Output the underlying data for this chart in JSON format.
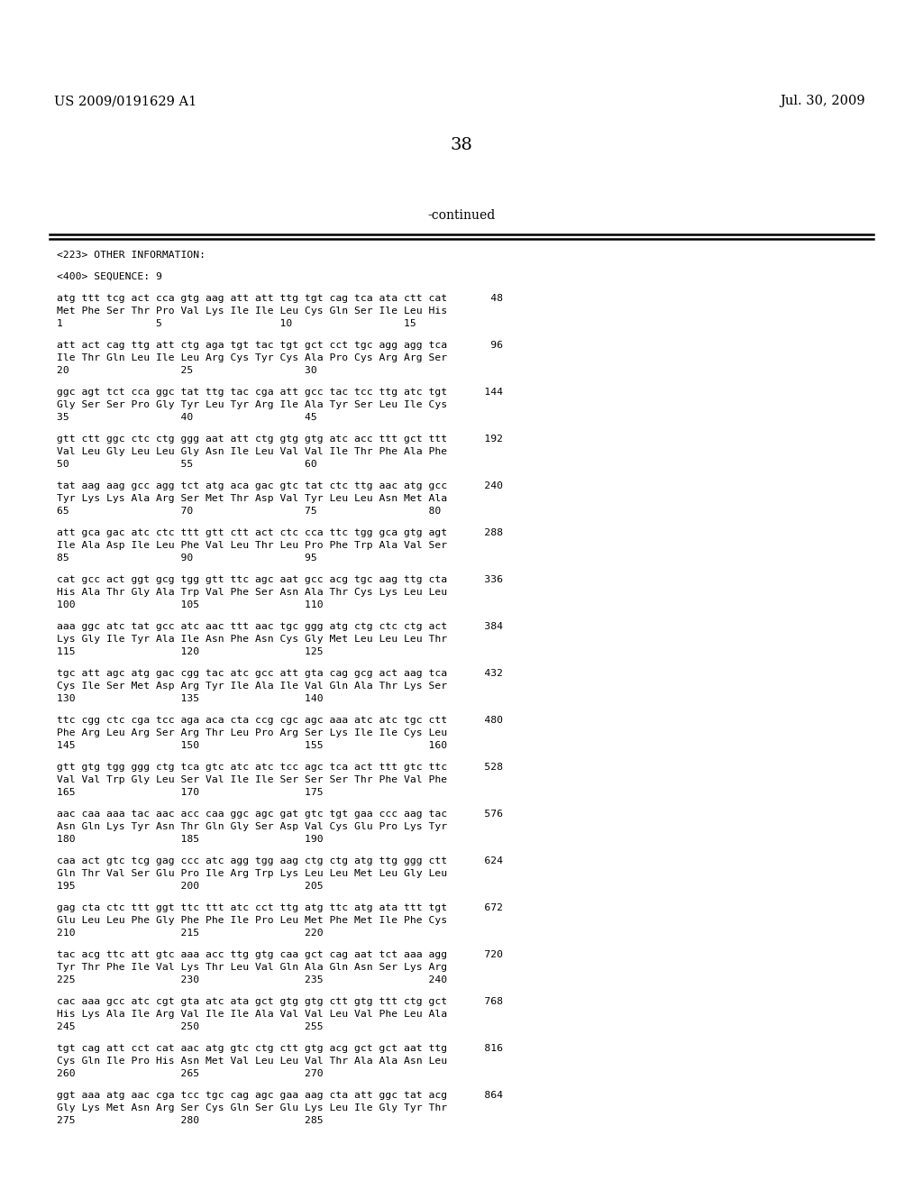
{
  "header_left": "US 2009/0191629 A1",
  "header_right": "Jul. 30, 2009",
  "page_number": "38",
  "continued_text": "-continued",
  "background_color": "#ffffff",
  "text_color": "#000000",
  "content": [
    "<223> OTHER INFORMATION:",
    "",
    "<400> SEQUENCE: 9",
    "",
    "atg ttt tcg act cca gtg aag att att ttg tgt cag tca ata ctt cat       48",
    "Met Phe Ser Thr Pro Val Lys Ile Ile Leu Cys Gln Ser Ile Leu His",
    "1               5                   10                  15",
    "",
    "att act cag ttg att ctg aga tgt tac tgt gct cct tgc agg agg tca       96",
    "Ile Thr Gln Leu Ile Leu Arg Cys Tyr Cys Ala Pro Cys Arg Arg Ser",
    "20                  25                  30",
    "",
    "ggc agt tct cca ggc tat ttg tac cga att gcc tac tcc ttg atc tgt      144",
    "Gly Ser Ser Pro Gly Tyr Leu Tyr Arg Ile Ala Tyr Ser Leu Ile Cys",
    "35                  40                  45",
    "",
    "gtt ctt ggc ctc ctg ggg aat att ctg gtg gtg atc acc ttt gct ttt      192",
    "Val Leu Gly Leu Leu Gly Asn Ile Leu Val Val Ile Thr Phe Ala Phe",
    "50                  55                  60",
    "",
    "tat aag aag gcc agg tct atg aca gac gtc tat ctc ttg aac atg gcc      240",
    "Tyr Lys Lys Ala Arg Ser Met Thr Asp Val Tyr Leu Leu Asn Met Ala",
    "65                  70                  75                  80",
    "",
    "att gca gac atc ctc ttt gtt ctt act ctc cca ttc tgg gca gtg agt      288",
    "Ile Ala Asp Ile Leu Phe Val Leu Thr Leu Pro Phe Trp Ala Val Ser",
    "85                  90                  95",
    "",
    "cat gcc act ggt gcg tgg gtt ttc agc aat gcc acg tgc aag ttg cta      336",
    "His Ala Thr Gly Ala Trp Val Phe Ser Asn Ala Thr Cys Lys Leu Leu",
    "100                 105                 110",
    "",
    "aaa ggc atc tat gcc atc aac ttt aac tgc ggg atg ctg ctc ctg act      384",
    "Lys Gly Ile Tyr Ala Ile Asn Phe Asn Cys Gly Met Leu Leu Leu Thr",
    "115                 120                 125",
    "",
    "tgc att agc atg gac cgg tac atc gcc att gta cag gcg act aag tca      432",
    "Cys Ile Ser Met Asp Arg Tyr Ile Ala Ile Val Gln Ala Thr Lys Ser",
    "130                 135                 140",
    "",
    "ttc cgg ctc cga tcc aga aca cta ccg cgc agc aaa atc atc tgc ctt      480",
    "Phe Arg Leu Arg Ser Arg Thr Leu Pro Arg Ser Lys Ile Ile Cys Leu",
    "145                 150                 155                 160",
    "",
    "gtt gtg tgg ggg ctg tca gtc atc atc tcc agc tca act ttt gtc ttc      528",
    "Val Val Trp Gly Leu Ser Val Ile Ile Ser Ser Ser Thr Phe Val Phe",
    "165                 170                 175",
    "",
    "aac caa aaa tac aac acc caa ggc agc gat gtc tgt gaa ccc aag tac      576",
    "Asn Gln Lys Tyr Asn Thr Gln Gly Ser Asp Val Cys Glu Pro Lys Tyr",
    "180                 185                 190",
    "",
    "caa act gtc tcg gag ccc atc agg tgg aag ctg ctg atg ttg ggg ctt      624",
    "Gln Thr Val Ser Glu Pro Ile Arg Trp Lys Leu Leu Met Leu Gly Leu",
    "195                 200                 205",
    "",
    "gag cta ctc ttt ggt ttc ttt atc cct ttg atg ttc atg ata ttt tgt      672",
    "Glu Leu Leu Phe Gly Phe Phe Ile Pro Leu Met Phe Met Ile Phe Cys",
    "210                 215                 220",
    "",
    "tac acg ttc att gtc aaa acc ttg gtg caa gct cag aat tct aaa agg      720",
    "Tyr Thr Phe Ile Val Lys Thr Leu Val Gln Ala Gln Asn Ser Lys Arg",
    "225                 230                 235                 240",
    "",
    "cac aaa gcc atc cgt gta atc ata gct gtg gtg ctt gtg ttt ctg gct      768",
    "His Lys Ala Ile Arg Val Ile Ile Ala Val Val Leu Val Phe Leu Ala",
    "245                 250                 255",
    "",
    "tgt cag att cct cat aac atg gtc ctg ctt gtg acg gct gct aat ttg      816",
    "Cys Gln Ile Pro His Asn Met Val Leu Leu Val Thr Ala Ala Asn Leu",
    "260                 265                 270",
    "",
    "ggt aaa atg aac cga tcc tgc cag agc gaa aag cta att ggc tat acg      864",
    "Gly Lys Met Asn Arg Ser Cys Gln Ser Glu Lys Leu Ile Gly Tyr Thr",
    "275                 280                 285"
  ]
}
